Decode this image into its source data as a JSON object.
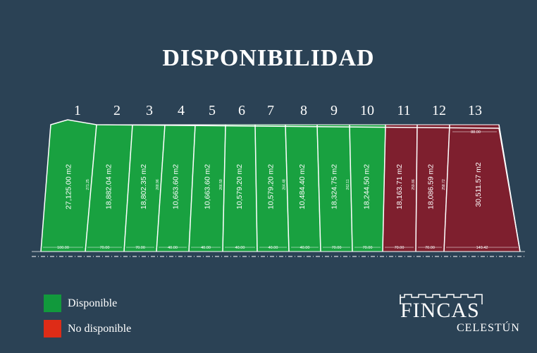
{
  "title": "DISPONIBILIDAD",
  "colors": {
    "background": "#2b4255",
    "available": "#19a140",
    "unavailable": "#7e1f2e",
    "legend_available": "#11993c",
    "legend_unavailable": "#de2c17",
    "lines": "#ffffff"
  },
  "lots": [
    {
      "number": "1",
      "area": "27,125.00 m2",
      "side": "271.25",
      "front": "100.00",
      "status": "available"
    },
    {
      "number": "2",
      "area": "18,882.04 m2",
      "side": "",
      "front": "70.00",
      "status": "available"
    },
    {
      "number": "3",
      "area": "18,802.35 m2",
      "side": "268.96",
      "front": "70.00",
      "status": "available"
    },
    {
      "number": "4",
      "area": "10,663.60 m2",
      "side": "",
      "front": "40.00",
      "status": "available"
    },
    {
      "number": "5",
      "area": "10,663.60 m2",
      "side": "266.59",
      "front": "40.00",
      "status": "available"
    },
    {
      "number": "6",
      "area": "10,579.20 m2",
      "side": "",
      "front": "40.00",
      "status": "available"
    },
    {
      "number": "7",
      "area": "10,579.20 m2",
      "side": "264.48",
      "front": "40.00",
      "status": "available"
    },
    {
      "number": "8",
      "area": "10,484.40 m2",
      "side": "",
      "front": "40.00",
      "status": "available"
    },
    {
      "number": "9",
      "area": "18,324.75 m2",
      "side": "262.11",
      "front": "70.00",
      "status": "available"
    },
    {
      "number": "10",
      "area": "18,244.50 m2",
      "side": "",
      "front": "70.00",
      "status": "available"
    },
    {
      "number": "11",
      "area": "18,163.71 m2",
      "side": "259.86",
      "front": "70.00",
      "status": "unavailable"
    },
    {
      "number": "12",
      "area": "18,086.59 m2",
      "side": "258.72",
      "front": "70.00",
      "status": "unavailable"
    },
    {
      "number": "13",
      "area": "30,511.57 m2",
      "side": "",
      "front": "149.42",
      "status": "unavailable"
    }
  ],
  "top_dimension": "88.00",
  "legend": [
    {
      "label": "Disponible",
      "status": "available"
    },
    {
      "label": "No disponible",
      "status": "unavailable"
    }
  ],
  "brand": {
    "name": "FINCAS",
    "subtitle": "CELESTÚN"
  }
}
